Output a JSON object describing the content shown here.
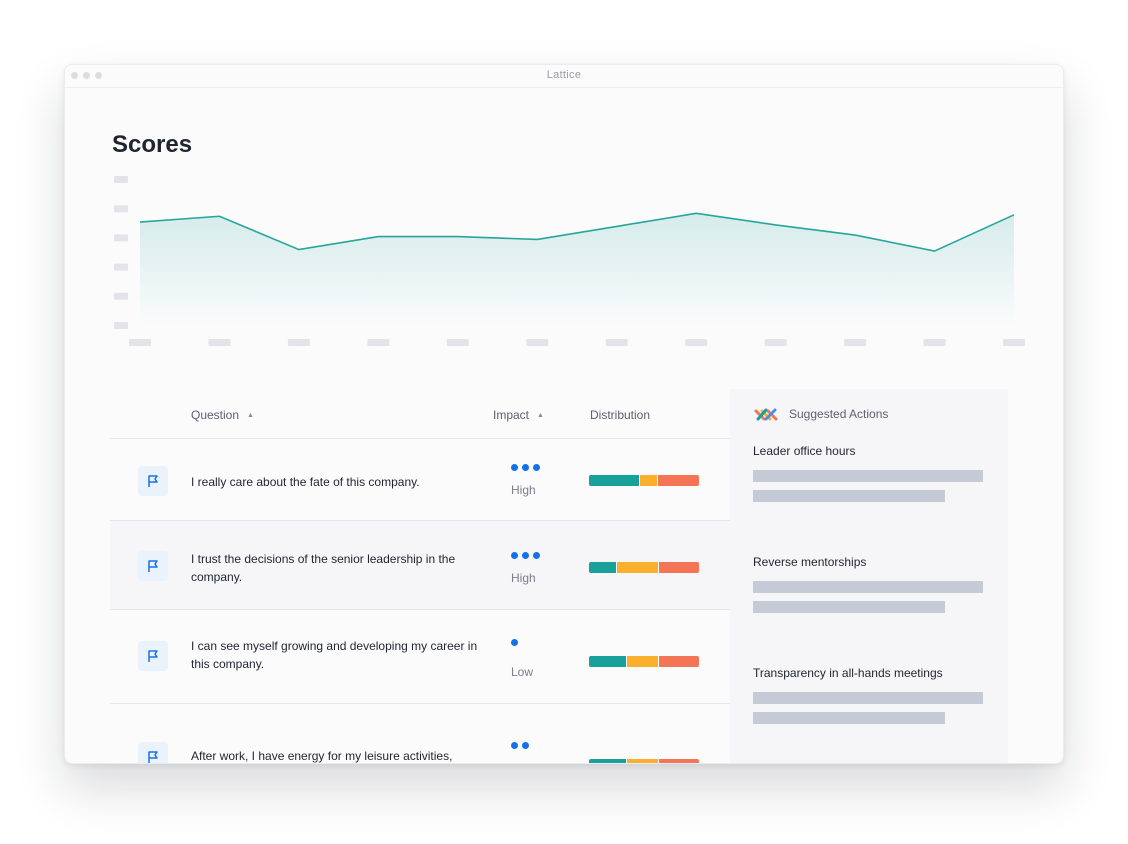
{
  "window": {
    "title": "Lattice"
  },
  "page": {
    "title": "Scores"
  },
  "chart_data": {
    "type": "area",
    "x": [
      1,
      2,
      3,
      4,
      5,
      6,
      7,
      8,
      9,
      10,
      11,
      12
    ],
    "values": [
      71,
      75,
      52,
      61,
      61,
      59,
      68,
      77,
      69,
      62,
      51,
      76
    ],
    "ylim": [
      0,
      100
    ],
    "y_tick_count": 6,
    "x_tick_count": 12,
    "tick_labels_redacted": true,
    "color": "#26a69a"
  },
  "table": {
    "columns": {
      "question": "Question",
      "impact": "Impact",
      "distribution": "Distribution"
    },
    "colors": {
      "positive": "#18a19a",
      "neutral": "#fbb02d",
      "negative": "#f47555"
    },
    "rows": [
      {
        "question": "I really care about the fate of this company.",
        "impact_level": 3,
        "impact": "High",
        "distribution": [
          0.46,
          0.16,
          0.38
        ]
      },
      {
        "question": "I trust the decisions of the senior leadership in the company.",
        "impact_level": 3,
        "impact": "High",
        "distribution": [
          0.25,
          0.38,
          0.37
        ]
      },
      {
        "question": "I can see myself growing and developing my career in this company.",
        "impact_level": 1,
        "impact": "Low",
        "distribution": [
          0.34,
          0.29,
          0.37
        ]
      },
      {
        "question": "After work, I have energy for my leisure activities,",
        "impact_level": 2,
        "impact": "",
        "distribution": [
          0.34,
          0.29,
          0.37
        ]
      }
    ]
  },
  "side_panel": {
    "title": "Suggested Actions",
    "icon": "lattice-logo-icon",
    "actions": [
      {
        "title": "Leader office hours"
      },
      {
        "title": "Reverse mentorships"
      },
      {
        "title": "Transparency in all-hands meetings"
      }
    ]
  }
}
